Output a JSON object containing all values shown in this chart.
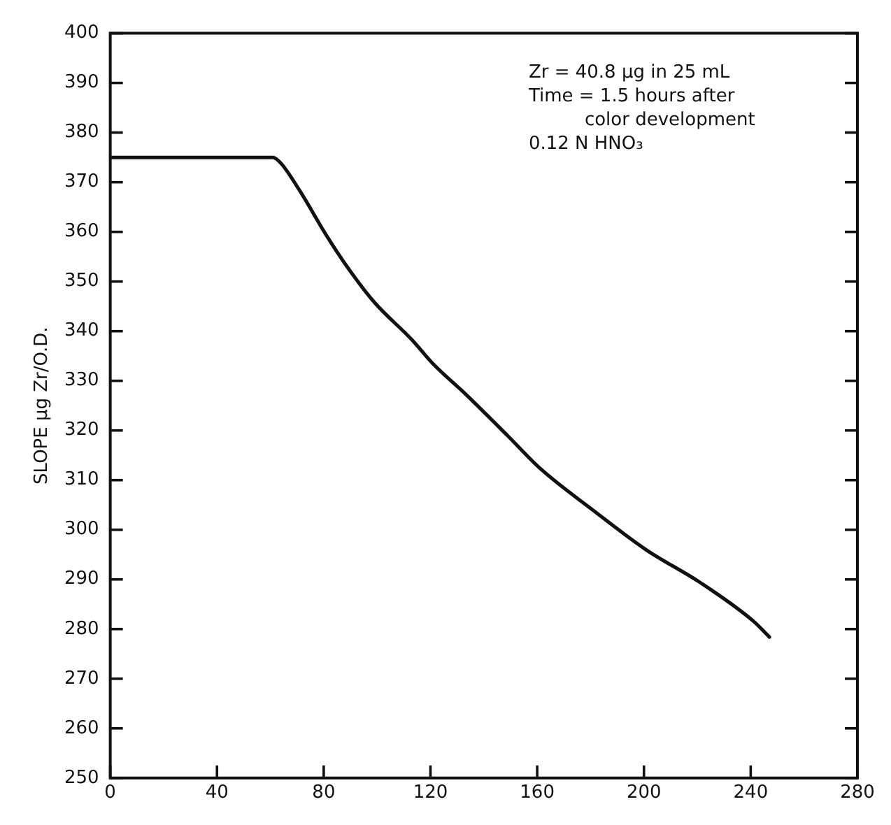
{
  "chart_data": {
    "type": "line",
    "ylabel": "SLOPE μg Zr/O.D.",
    "annotations": [
      "Zr = 40.8 μg in 25 mL",
      "Time = 1.5 hours after color development",
      "0.12 N HNO₃"
    ],
    "x": [
      0,
      61,
      64,
      71,
      81,
      89,
      99,
      113,
      121,
      133,
      149,
      161,
      181,
      201,
      221,
      241,
      247
    ],
    "series": [
      {
        "color": "#111111",
        "values": [
          375,
          375,
          373.8,
          368.3,
          359.3,
          352.8,
          345.8,
          338.3,
          333.4,
          327.4,
          318.9,
          312.4,
          303.9,
          295.9,
          289.4,
          281.6,
          278.4
        ]
      }
    ],
    "xlim": [
      0,
      280
    ],
    "xticks": [
      0,
      40,
      80,
      120,
      160,
      200,
      240,
      280
    ],
    "ylim": [
      250,
      400
    ],
    "yticks": [
      250,
      260,
      270,
      280,
      290,
      300,
      310,
      320,
      330,
      340,
      350,
      360,
      370,
      380,
      390,
      400
    ],
    "grid": false,
    "legend": false,
    "marker": "none",
    "line_style": "solid"
  }
}
